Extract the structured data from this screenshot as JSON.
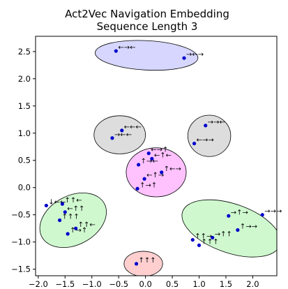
{
  "chart_data": {
    "type": "scatter",
    "title": "Act2Vec Navigation Embedding",
    "subtitle": "Sequence Length 3",
    "xlabel": "",
    "ylabel": "",
    "xlim": [
      -2.05,
      2.45
    ],
    "ylim": [
      -1.62,
      2.78
    ],
    "xticks": [
      -2.0,
      -1.5,
      -1.0,
      -0.5,
      0.0,
      0.5,
      1.0,
      1.5,
      2.0
    ],
    "xtick_labels": [
      "−2.0",
      "−1.5",
      "−1.0",
      "−0.5",
      "0.0",
      "0.5",
      "1.0",
      "1.5",
      "2.0"
    ],
    "yticks": [
      -1.5,
      -1.0,
      -0.5,
      0.0,
      0.5,
      1.0,
      1.5,
      2.0,
      2.5
    ],
    "ytick_labels": [
      "−1.5",
      "−1.0",
      "−0.5",
      "0.0",
      "0.5",
      "1.0",
      "1.5",
      "2.0",
      "2.5"
    ],
    "grid": false,
    "point_color": "#0000cc",
    "clusters": [
      {
        "color": "#9999ff",
        "cx": 0.02,
        "cy": 2.43,
        "rx": 0.96,
        "ry": 0.27,
        "angle": -3,
        "points": [
          {
            "x": -0.55,
            "y": 2.51,
            "label": "←→←"
          },
          {
            "x": 0.72,
            "y": 2.38,
            "label": "→←→"
          }
        ]
      },
      {
        "color": "#aaaaaa",
        "cx": -0.48,
        "cy": 0.97,
        "rx": 0.48,
        "ry": 0.35,
        "angle": 0,
        "points": [
          {
            "x": -0.44,
            "y": 1.05,
            "label": "←←←"
          },
          {
            "x": -0.62,
            "y": 0.91,
            "label": "→←←"
          }
        ]
      },
      {
        "color": "#aaaaaa",
        "cx": 1.19,
        "cy": 0.95,
        "rx": 0.4,
        "ry": 0.38,
        "angle": 0,
        "points": [
          {
            "x": 1.12,
            "y": 1.14,
            "label": "→→←"
          },
          {
            "x": 0.91,
            "y": 0.81,
            "label": "←→→"
          }
        ]
      },
      {
        "color": "#ff66ff",
        "cx": 0.2,
        "cy": 0.28,
        "rx": 0.56,
        "ry": 0.45,
        "angle": 0,
        "points": [
          {
            "x": 0.06,
            "y": 0.63,
            "label": "←→↑"
          },
          {
            "x": -0.13,
            "y": 0.42,
            "label": "↑→←"
          },
          {
            "x": 0.12,
            "y": 0.53,
            "label": "←↑←"
          },
          {
            "x": 0.3,
            "y": 0.28,
            "label": "↑←→"
          },
          {
            "x": -0.02,
            "y": 0.16,
            "label": "←↑→"
          },
          {
            "x": -0.15,
            "y": -0.02,
            "label": "↑→↑"
          }
        ]
      },
      {
        "color": "#88ee88",
        "cx": -1.35,
        "cy": -0.6,
        "rx": 0.66,
        "ry": 0.45,
        "angle": 28,
        "points": [
          {
            "x": -1.85,
            "y": -0.33,
            "label": "↓←←"
          },
          {
            "x": -1.55,
            "y": -0.3,
            "label": "↑↑←"
          },
          {
            "x": -1.5,
            "y": -0.45,
            "label": "←↑↑"
          },
          {
            "x": -1.6,
            "y": -0.6,
            "label": "↑↑↑"
          },
          {
            "x": -1.3,
            "y": -0.75,
            "label": "↑↑←"
          },
          {
            "x": -1.45,
            "y": -0.85,
            "label": "↑→↑"
          }
        ]
      },
      {
        "color": "#88ee88",
        "cx": 1.6,
        "cy": -0.75,
        "rx": 0.96,
        "ry": 0.45,
        "angle": -19,
        "points": [
          {
            "x": 1.55,
            "y": -0.52,
            "label": "→↑→"
          },
          {
            "x": 2.18,
            "y": -0.5,
            "label": "→→→"
          },
          {
            "x": 1.72,
            "y": -0.78,
            "label": "↑→→"
          },
          {
            "x": 0.88,
            "y": -0.96,
            "label": "↑↑→"
          },
          {
            "x": 1.25,
            "y": -0.92,
            "label": "→↑↑"
          },
          {
            "x": 1.0,
            "y": -1.06,
            "label": "↑↑↑"
          }
        ]
      },
      {
        "color": "#ff8888",
        "cx": -0.04,
        "cy": -1.4,
        "rx": 0.36,
        "ry": 0.23,
        "angle": 0,
        "points": [
          {
            "x": -0.17,
            "y": -1.4,
            "label": "↑↑↑"
          }
        ]
      }
    ]
  }
}
